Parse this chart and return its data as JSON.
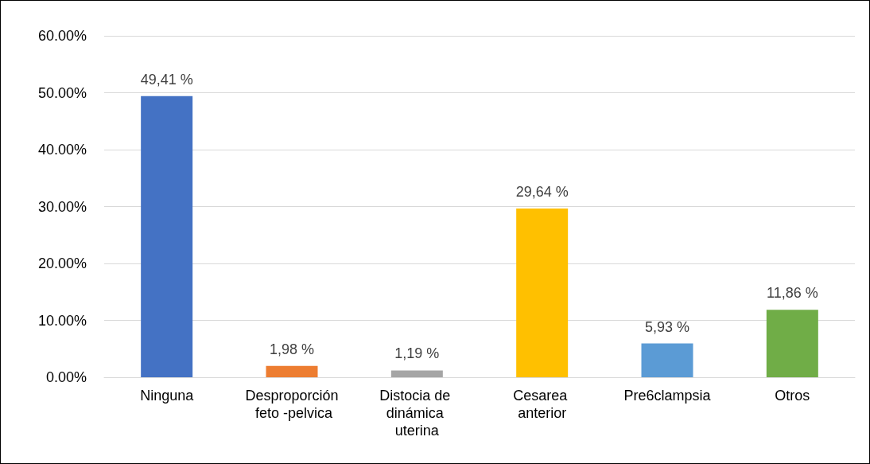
{
  "chart_data": {
    "type": "bar",
    "categories": [
      "Ninguna",
      "Desproporción feto -pelvica",
      "Distocia de dinámica uterina",
      "Cesarea anterior",
      "Pre6clampsia",
      "Otros"
    ],
    "values": [
      49.41,
      1.98,
      1.19,
      29.64,
      5.93,
      11.86
    ],
    "colors": [
      "#4472c4",
      "#ed7d31",
      "#a5a5a5",
      "#ffc000",
      "#5b9bd5",
      "#70ad47"
    ],
    "value_labels": [
      "49,41 %",
      "1,98 %",
      "1,19 %",
      "29,64 %",
      "5,93 %",
      "11,86 %"
    ],
    "ylim": [
      0,
      60
    ],
    "yticks": [
      {
        "value": 0,
        "label": "0.00%"
      },
      {
        "value": 10,
        "label": "10.00%"
      },
      {
        "value": 20,
        "label": "20.00%"
      },
      {
        "value": 30,
        "label": "30.00%"
      },
      {
        "value": 40,
        "label": "40.00%"
      },
      {
        "value": 50,
        "label": "50.00%"
      },
      {
        "value": 60,
        "label": "60.00%"
      }
    ],
    "grid": true
  }
}
